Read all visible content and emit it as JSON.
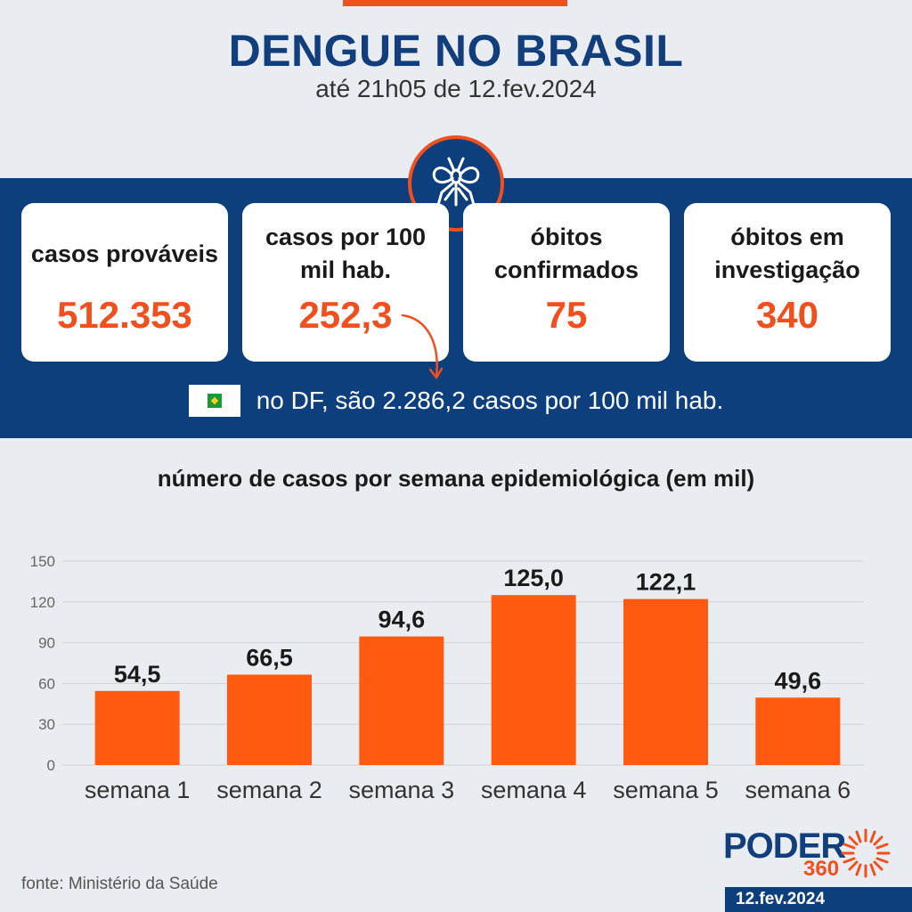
{
  "header": {
    "title": "DENGUE NO BRASIL",
    "subtitle": "até 21h05 de 12.fev.2024"
  },
  "stats": [
    {
      "label": "casos prováveis",
      "value": "512.353"
    },
    {
      "label": "casos por 100 mil hab.",
      "value": "252,3"
    },
    {
      "label": "óbitos confirmados",
      "value": "75"
    },
    {
      "label": "óbitos em investigação",
      "value": "340"
    }
  ],
  "df_note": "no DF, são 2.286,2 casos por 100 mil hab.",
  "chart_data": {
    "type": "bar",
    "title": "número de casos por semana epidemiológica (em mil)",
    "categories": [
      "semana 1",
      "semana 2",
      "semana 3",
      "semana 4",
      "semana 5",
      "semana 6"
    ],
    "values": [
      54.5,
      66.5,
      94.6,
      125.0,
      122.1,
      49.6
    ],
    "value_labels": [
      "54,5",
      "66,5",
      "94,6",
      "125,0",
      "122,1",
      "49,6"
    ],
    "yticks": [
      0,
      30,
      60,
      90,
      120,
      150
    ],
    "ylim": [
      0,
      150
    ],
    "xlabel": "",
    "ylabel": "",
    "grid": true,
    "bar_color": "#ff5a0f"
  },
  "footer": {
    "source": "fonte: Ministério da Saúde",
    "logo_word": "PODER",
    "logo_number": "360",
    "date": "12.fev.2024"
  },
  "colors": {
    "brand_blue": "#0d3f7d",
    "accent_orange": "#f0501e"
  }
}
